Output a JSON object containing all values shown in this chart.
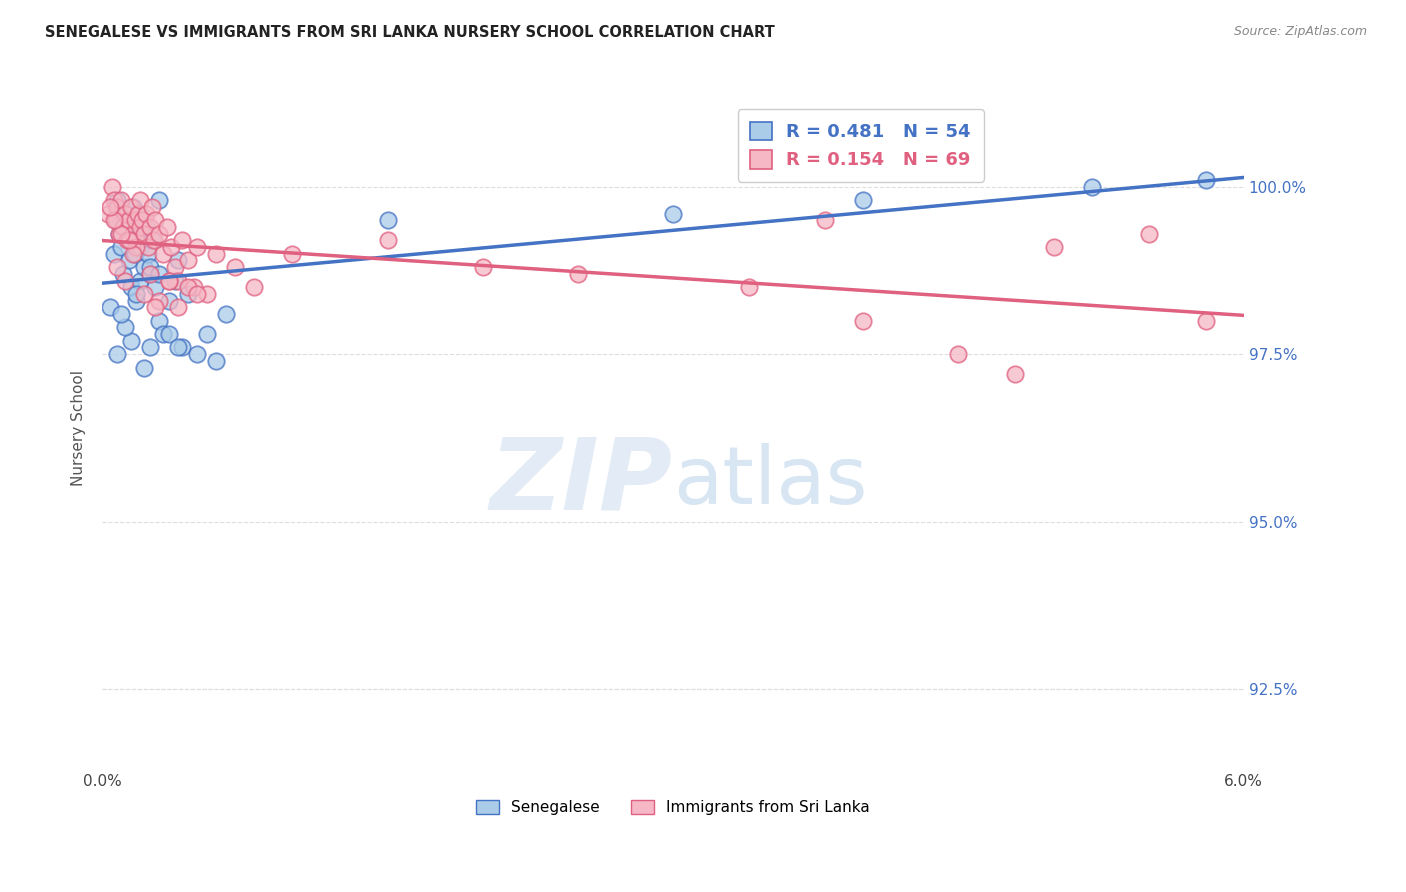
{
  "title": "SENEGALESE VS IMMIGRANTS FROM SRI LANKA NURSERY SCHOOL CORRELATION CHART",
  "source": "Source: ZipAtlas.com",
  "ylabel": "Nursery School",
  "ytick_labels": [
    "92.5%",
    "95.0%",
    "97.5%",
    "100.0%"
  ],
  "ytick_values": [
    92.5,
    95.0,
    97.5,
    100.0
  ],
  "xmin": 0.0,
  "xmax": 6.0,
  "ymin": 91.3,
  "ymax": 101.5,
  "legend_blue_r": "R = 0.481",
  "legend_blue_n": "N = 54",
  "legend_pink_r": "R = 0.154",
  "legend_pink_n": "N = 69",
  "legend_blue_label": "Senegalese",
  "legend_pink_label": "Immigrants from Sri Lanka",
  "blue_color": "#aacce8",
  "pink_color": "#f5b8c4",
  "blue_line_color": "#4472c4",
  "pink_line_color": "#e06080",
  "blue_x": [
    0.04,
    0.06,
    0.07,
    0.08,
    0.09,
    0.1,
    0.11,
    0.12,
    0.13,
    0.14,
    0.15,
    0.15,
    0.16,
    0.17,
    0.18,
    0.19,
    0.2,
    0.2,
    0.21,
    0.22,
    0.23,
    0.24,
    0.25,
    0.26,
    0.28,
    0.3,
    0.32,
    0.35,
    0.38,
    0.4,
    0.42,
    0.45,
    0.5,
    0.55,
    0.6,
    0.65,
    0.3,
    0.25,
    0.2,
    0.18,
    0.22,
    0.35,
    0.4,
    0.15,
    0.12,
    0.1,
    0.08,
    0.3,
    0.25,
    1.5,
    3.0,
    4.0,
    5.2,
    5.8
  ],
  "blue_y": [
    98.2,
    99.0,
    99.5,
    99.8,
    99.3,
    99.1,
    98.7,
    99.4,
    99.6,
    98.9,
    99.2,
    98.5,
    99.7,
    99.0,
    98.3,
    99.5,
    99.1,
    98.6,
    99.3,
    98.8,
    99.4,
    99.0,
    98.7,
    99.2,
    98.5,
    98.0,
    97.8,
    98.3,
    98.6,
    98.9,
    97.6,
    98.4,
    97.5,
    97.8,
    97.4,
    98.1,
    99.8,
    98.8,
    99.6,
    98.4,
    97.3,
    97.8,
    97.6,
    97.7,
    97.9,
    98.1,
    97.5,
    98.7,
    97.6,
    99.5,
    99.6,
    99.8,
    100.0,
    100.1
  ],
  "pink_x": [
    0.03,
    0.05,
    0.06,
    0.07,
    0.08,
    0.09,
    0.1,
    0.11,
    0.12,
    0.13,
    0.14,
    0.15,
    0.16,
    0.17,
    0.18,
    0.19,
    0.2,
    0.2,
    0.21,
    0.22,
    0.23,
    0.24,
    0.25,
    0.26,
    0.27,
    0.28,
    0.3,
    0.32,
    0.34,
    0.36,
    0.38,
    0.4,
    0.42,
    0.45,
    0.48,
    0.5,
    0.55,
    0.6,
    0.22,
    0.18,
    0.16,
    0.14,
    0.12,
    0.1,
    0.08,
    0.06,
    0.04,
    0.25,
    0.3,
    0.35,
    0.4,
    0.45,
    1.0,
    2.0,
    3.4,
    4.0,
    4.5,
    5.0,
    5.5,
    4.8,
    5.8,
    3.8,
    0.7,
    0.8,
    1.5,
    2.5,
    0.5,
    0.28,
    0.35
  ],
  "pink_y": [
    99.6,
    100.0,
    99.8,
    99.5,
    99.7,
    99.3,
    99.8,
    99.4,
    99.6,
    99.2,
    99.5,
    99.7,
    99.3,
    99.5,
    99.2,
    99.6,
    99.4,
    99.8,
    99.5,
    99.3,
    99.6,
    99.1,
    99.4,
    99.7,
    99.2,
    99.5,
    99.3,
    99.0,
    99.4,
    99.1,
    98.8,
    98.6,
    99.2,
    98.9,
    98.5,
    99.1,
    98.4,
    99.0,
    98.4,
    99.1,
    99.0,
    99.2,
    98.6,
    99.3,
    98.8,
    99.5,
    99.7,
    98.7,
    98.3,
    98.6,
    98.2,
    98.5,
    99.0,
    98.8,
    98.5,
    98.0,
    97.5,
    99.1,
    99.3,
    97.2,
    98.0,
    99.5,
    98.8,
    98.5,
    99.2,
    98.7,
    98.4,
    98.2,
    98.6
  ],
  "watermark_zip_color": "#d0dff0",
  "watermark_atlas_color": "#c0d8f0",
  "grid_color": "#dddddd",
  "background_color": "#ffffff"
}
